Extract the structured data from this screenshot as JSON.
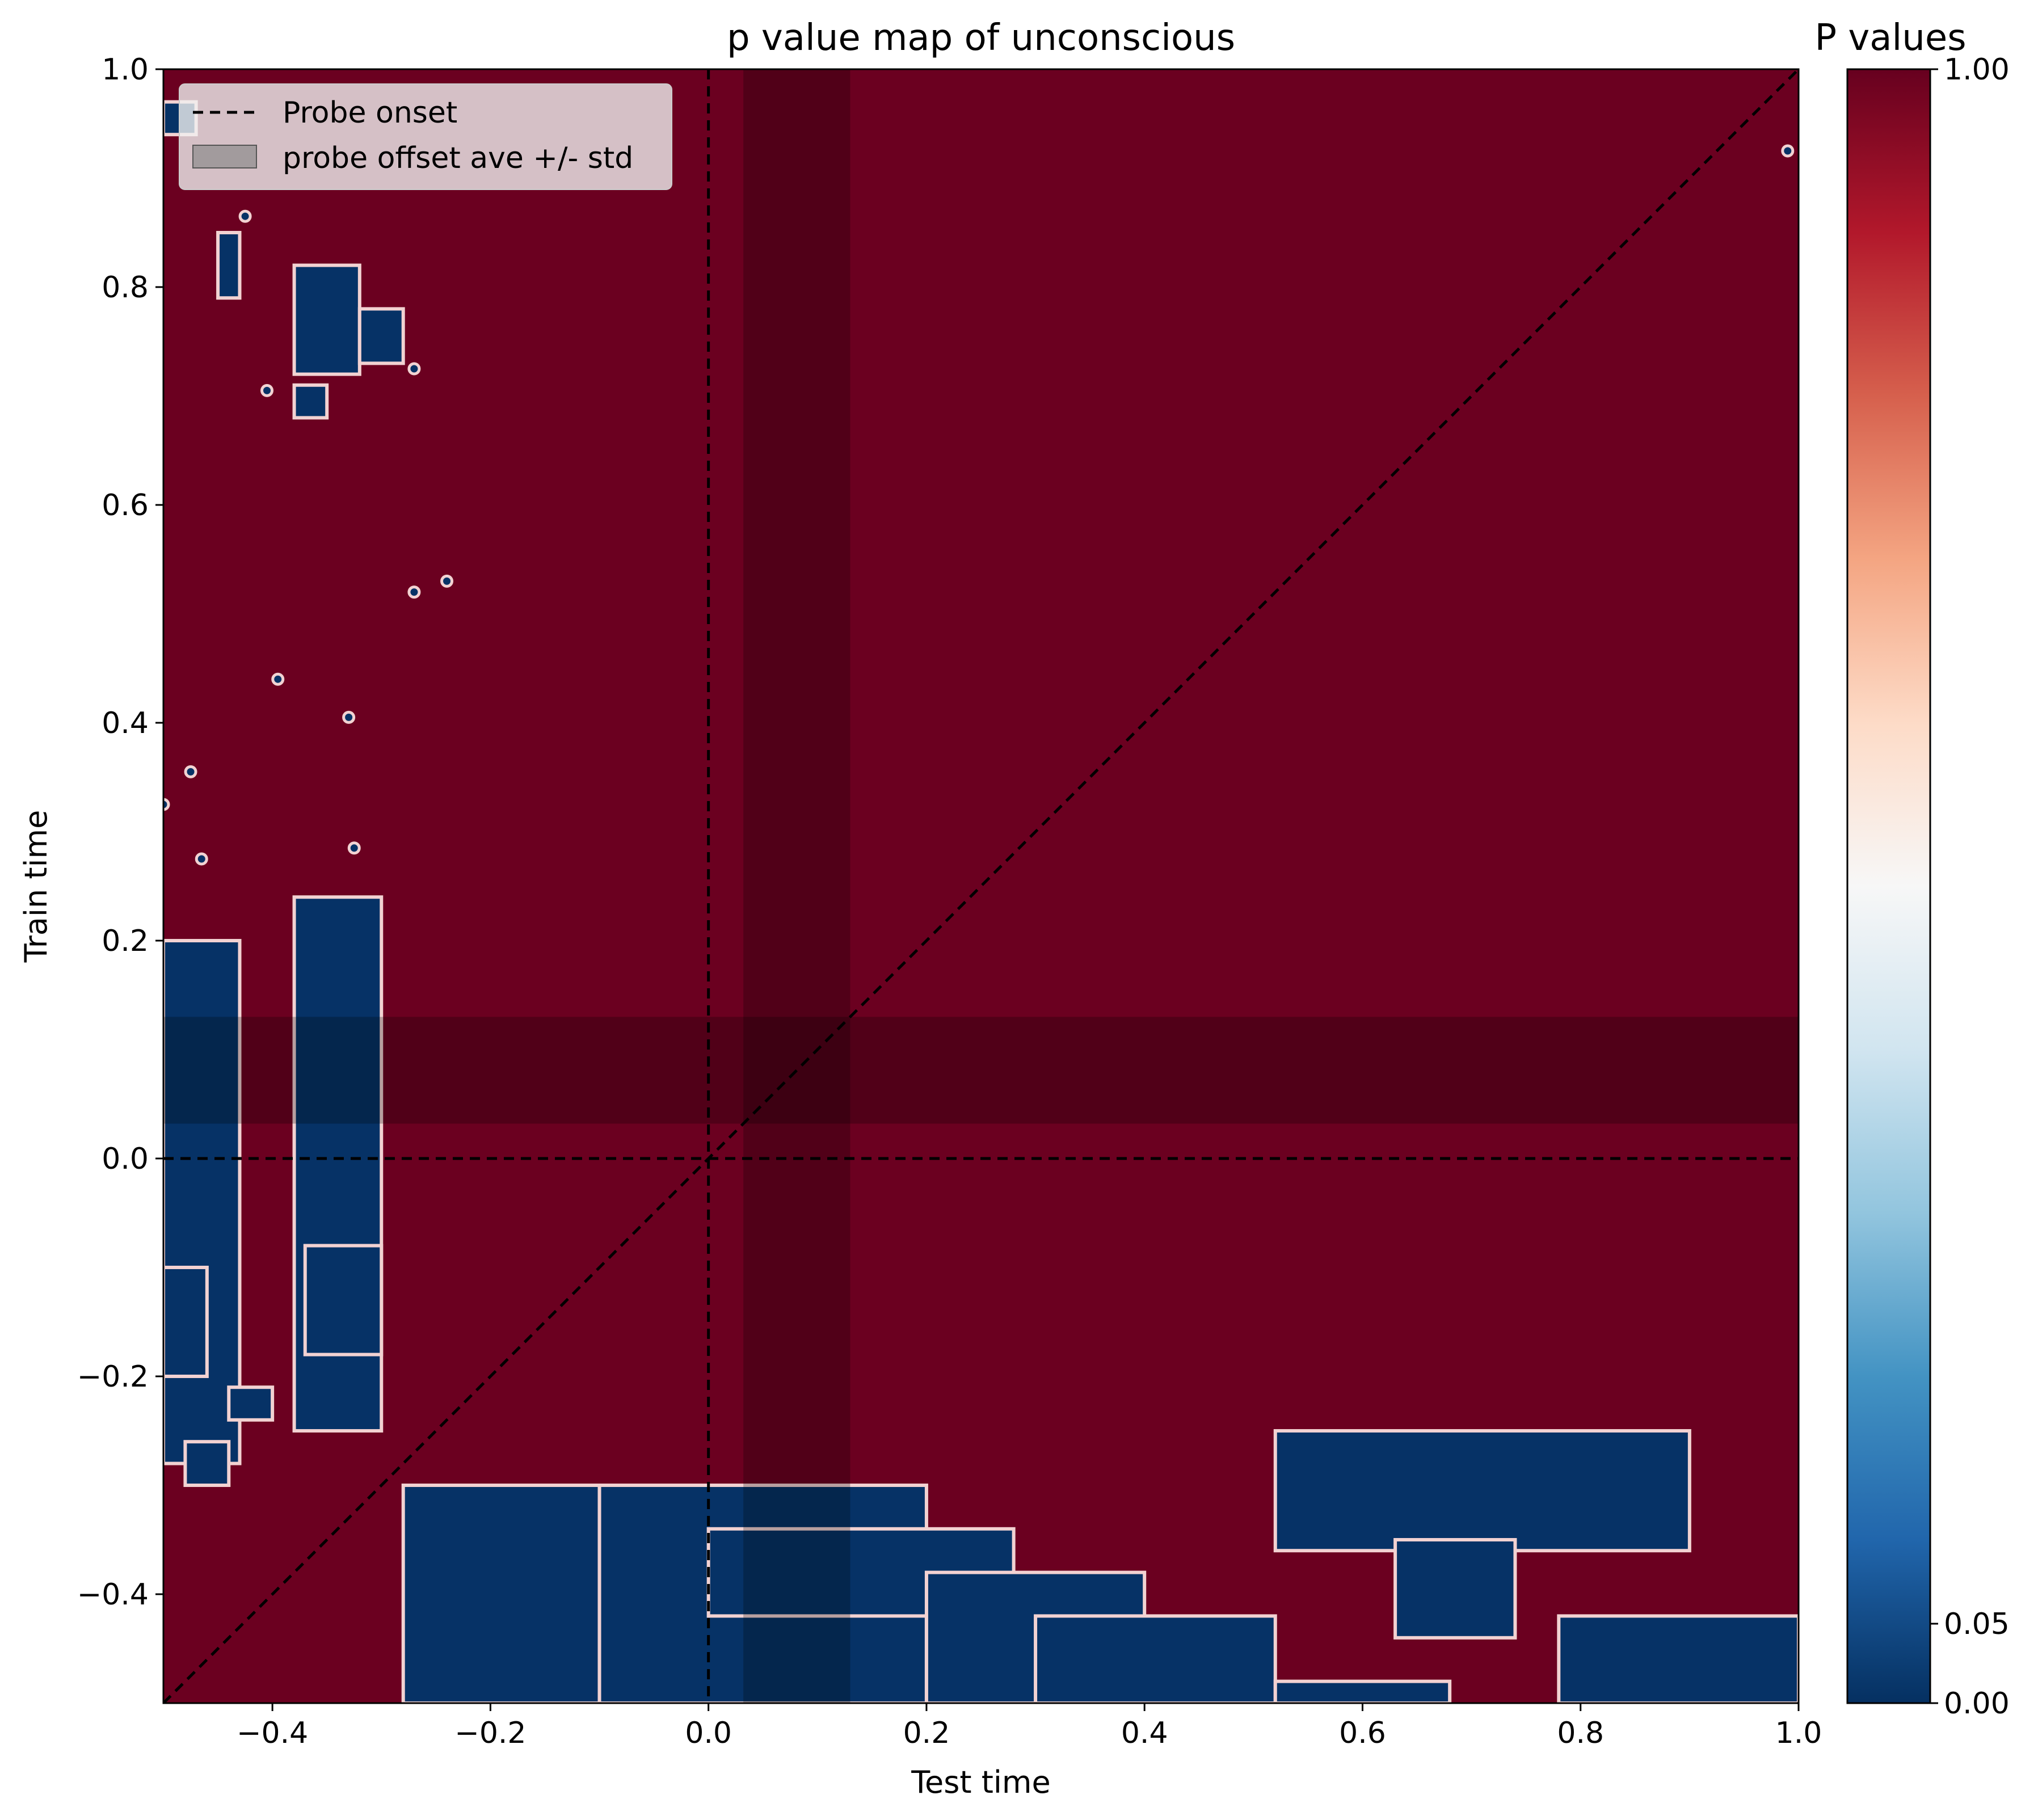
{
  "chart_data": {
    "type": "heatmap",
    "title": "p value map of unconscious",
    "xlabel": "Test time",
    "ylabel": "Train time",
    "xlim": [
      -0.5,
      1.0
    ],
    "ylim": [
      -0.5,
      1.0
    ],
    "xticks": [
      -0.4,
      -0.2,
      0.0,
      0.2,
      0.4,
      0.6,
      0.8,
      1.0
    ],
    "yticks": [
      -0.4,
      -0.2,
      0.0,
      0.2,
      0.4,
      0.6,
      0.8,
      1.0
    ],
    "xtick_labels": [
      "−0.4",
      "−0.2",
      "0.0",
      "0.2",
      "0.4",
      "0.6",
      "0.8",
      "1.0"
    ],
    "ytick_labels": [
      "−0.4",
      "−0.2",
      "0.0",
      "0.2",
      "0.4",
      "0.6",
      "0.8",
      "1.0"
    ],
    "background_p_value": 1.0,
    "significant_p_value": 0.0,
    "significant_regions": [
      {
        "x": [
          -0.5,
          -0.47
        ],
        "y": [
          0.94,
          0.97
        ]
      },
      {
        "x": [
          -0.45,
          -0.43
        ],
        "y": [
          0.79,
          0.85
        ]
      },
      {
        "x": [
          -0.38,
          -0.32
        ],
        "y": [
          0.72,
          0.82
        ]
      },
      {
        "x": [
          -0.32,
          -0.28
        ],
        "y": [
          0.73,
          0.78
        ]
      },
      {
        "x": [
          -0.38,
          -0.35
        ],
        "y": [
          0.68,
          0.71
        ]
      },
      {
        "x": [
          -0.5,
          -0.43
        ],
        "y": [
          -0.28,
          0.2
        ]
      },
      {
        "x": [
          -0.5,
          -0.46
        ],
        "y": [
          -0.2,
          -0.1
        ]
      },
      {
        "x": [
          -0.48,
          -0.44
        ],
        "y": [
          -0.3,
          -0.26
        ]
      },
      {
        "x": [
          -0.44,
          -0.4
        ],
        "y": [
          -0.24,
          -0.21
        ]
      },
      {
        "x": [
          -0.38,
          -0.3
        ],
        "y": [
          -0.25,
          0.24
        ]
      },
      {
        "x": [
          -0.37,
          -0.3
        ],
        "y": [
          -0.18,
          -0.08
        ]
      },
      {
        "x": [
          -0.28,
          -0.1
        ],
        "y": [
          -0.5,
          -0.3
        ]
      },
      {
        "x": [
          -0.1,
          0.2
        ],
        "y": [
          -0.5,
          -0.3
        ]
      },
      {
        "x": [
          0.0,
          0.28
        ],
        "y": [
          -0.42,
          -0.34
        ]
      },
      {
        "x": [
          0.2,
          0.4
        ],
        "y": [
          -0.5,
          -0.38
        ]
      },
      {
        "x": [
          0.3,
          0.52
        ],
        "y": [
          -0.5,
          -0.42
        ]
      },
      {
        "x": [
          0.52,
          0.68
        ],
        "y": [
          -0.5,
          -0.48
        ]
      },
      {
        "x": [
          0.52,
          0.9
        ],
        "y": [
          -0.36,
          -0.25
        ]
      },
      {
        "x": [
          0.63,
          0.74
        ],
        "y": [
          -0.44,
          -0.35
        ]
      },
      {
        "x": [
          0.78,
          1.0
        ],
        "y": [
          -0.5,
          -0.42
        ]
      }
    ],
    "significant_points": [
      {
        "x": 0.99,
        "y": 0.925
      },
      {
        "x": -0.425,
        "y": 0.865
      },
      {
        "x": -0.405,
        "y": 0.705
      },
      {
        "x": -0.395,
        "y": 0.44
      },
      {
        "x": -0.27,
        "y": 0.52
      },
      {
        "x": -0.24,
        "y": 0.53
      },
      {
        "x": -0.33,
        "y": 0.405
      },
      {
        "x": -0.475,
        "y": 0.355
      },
      {
        "x": -0.5,
        "y": 0.325
      },
      {
        "x": -0.465,
        "y": 0.275
      },
      {
        "x": -0.325,
        "y": 0.285
      },
      {
        "x": -0.27,
        "y": 0.725
      }
    ],
    "probe_onset": 0.0,
    "probe_offset_band": [
      0.032,
      0.13
    ],
    "diagonal": true,
    "legend": {
      "position": "upper-left",
      "entries": [
        "Probe onset",
        "probe offset ave +/- std"
      ]
    },
    "colorbar": {
      "title": "P values",
      "ticks": [
        0.0,
        0.05,
        1.0
      ],
      "tick_labels": [
        "0.00",
        "0.05",
        "1.00"
      ],
      "colormap": "RdBu_r",
      "colors": [
        "#053061",
        "#2166ac",
        "#4393c3",
        "#92c5de",
        "#d1e5f0",
        "#f7f7f7",
        "#fddbc7",
        "#f4a582",
        "#d6604d",
        "#b2182b",
        "#67001f"
      ]
    },
    "colors": {
      "background": "#6b0020",
      "significant": "#063266",
      "contour": "#f2d2d2",
      "overlay": "#000000"
    }
  }
}
